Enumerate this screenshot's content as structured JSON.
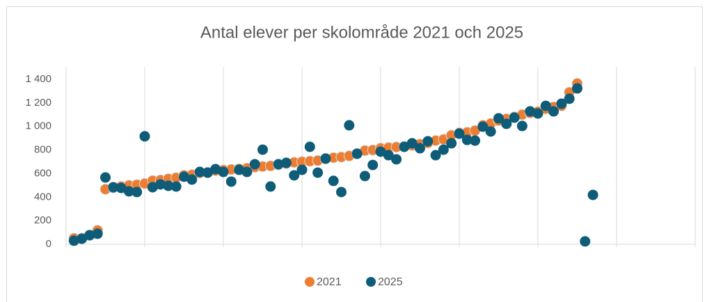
{
  "chart_data": {
    "type": "scatter",
    "title": "Antal elever per skolområde 2021 och 2025",
    "xlim": [
      0,
      80
    ],
    "xticks": [
      0,
      10,
      20,
      30,
      40,
      50,
      60,
      70,
      80
    ],
    "ylim": [
      0,
      1400
    ],
    "yticks": [
      0,
      200,
      400,
      600,
      800,
      {
        "value": 1000,
        "label": "1 000"
      },
      {
        "value": 1200,
        "label": "1 200"
      },
      {
        "value": 1400,
        "label": "1 400"
      }
    ],
    "grid": true,
    "legend": "bottom",
    "series": [
      {
        "name": "2021",
        "color": "#ed7d31",
        "x": [
          1,
          2,
          3,
          4,
          5,
          6,
          7,
          8,
          9,
          10,
          11,
          12,
          13,
          14,
          15,
          16,
          17,
          18,
          19,
          20,
          21,
          22,
          23,
          24,
          25,
          26,
          27,
          28,
          29,
          30,
          31,
          32,
          33,
          34,
          35,
          36,
          37,
          38,
          39,
          40,
          41,
          42,
          43,
          44,
          45,
          46,
          47,
          48,
          49,
          50,
          51,
          52,
          53,
          54,
          55,
          56,
          57,
          58,
          59,
          60,
          61,
          62,
          63,
          64,
          65
        ],
        "values": [
          50,
          50,
          77,
          118,
          467,
          480,
          490,
          500,
          505,
          515,
          540,
          545,
          555,
          565,
          585,
          590,
          605,
          610,
          625,
          630,
          635,
          640,
          645,
          655,
          660,
          665,
          675,
          685,
          695,
          700,
          705,
          710,
          725,
          735,
          740,
          750,
          770,
          795,
          800,
          815,
          820,
          825,
          830,
          840,
          850,
          860,
          880,
          890,
          925,
          945,
          950,
          965,
          1010,
          1025,
          1050,
          1065,
          1080,
          1100,
          1115,
          1125,
          1150,
          1165,
          1175,
          1290,
          1365
        ]
      },
      {
        "name": "2025",
        "color": "#0e5c78",
        "x": [
          1,
          2,
          3,
          4,
          5,
          6,
          7,
          8,
          9,
          10,
          11,
          12,
          13,
          14,
          15,
          16,
          17,
          18,
          19,
          20,
          21,
          22,
          23,
          24,
          25,
          26,
          27,
          28,
          29,
          30,
          31,
          32,
          33,
          34,
          35,
          36,
          37,
          38,
          39,
          40,
          41,
          42,
          43,
          44,
          45,
          46,
          47,
          48,
          49,
          50,
          51,
          52,
          53,
          54,
          55,
          56,
          57,
          58,
          59,
          60,
          61,
          62,
          63,
          64,
          65,
          66,
          67
        ],
        "values": [
          30,
          47,
          77,
          89,
          567,
          484,
          478,
          449,
          443,
          916,
          484,
          508,
          496,
          490,
          573,
          549,
          614,
          608,
          638,
          614,
          532,
          632,
          614,
          679,
          803,
          490,
          679,
          691,
          585,
          632,
          827,
          608,
          727,
          538,
          443,
          1010,
          768,
          579,
          673,
          786,
          756,
          721,
          827,
          857,
          815,
          874,
          756,
          803,
          857,
          939,
          886,
          880,
          998,
          957,
          1069,
          1022,
          1075,
          1004,
          1128,
          1110,
          1175,
          1128,
          1193,
          1235,
          1323,
          24,
          419
        ]
      }
    ]
  }
}
